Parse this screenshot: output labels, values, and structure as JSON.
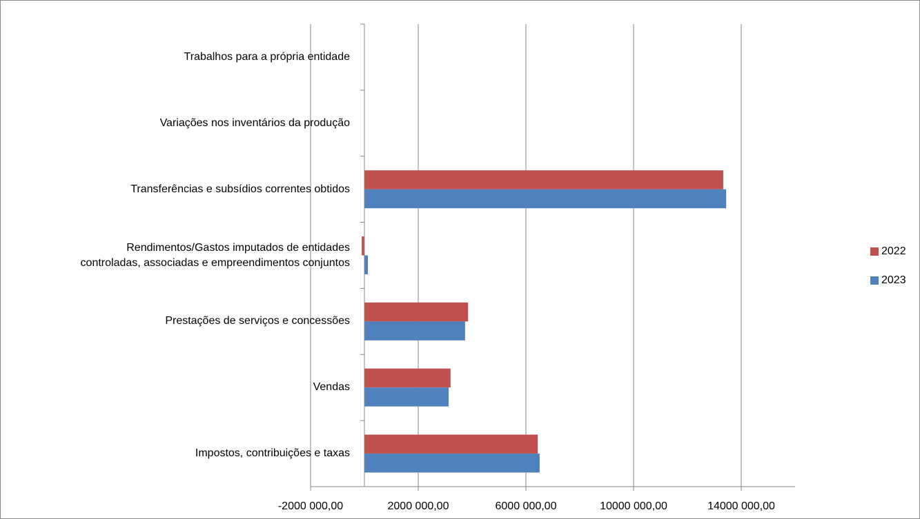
{
  "chart_data": {
    "type": "bar",
    "orientation": "horizontal",
    "categories": [
      "Trabalhos para a própria entidade",
      "Variações nos inventários da produção",
      "Transferências e subsídios correntes obtidos",
      "Rendimentos/Gastos imputados de entidades\ncontroladas, associadas e empreendimentos conjuntos",
      "Prestações de serviços e concessões",
      "Vendas",
      "Impostos, contribuições e taxas"
    ],
    "series": [
      {
        "name": "2022",
        "color": "#c0504d",
        "values": [
          0,
          0,
          13330000,
          -100000,
          3850000,
          3200000,
          6440000
        ]
      },
      {
        "name": "2023",
        "color": "#4f81bd",
        "values": [
          0,
          0,
          13440000,
          130000,
          3740000,
          3130000,
          6510000
        ]
      }
    ],
    "xlim": [
      -2000000,
      16000000
    ],
    "xticks": [
      {
        "value": -2000000,
        "label": "-2000 000,00"
      },
      {
        "value": 2000000,
        "label": "2000 000,00"
      },
      {
        "value": 6000000,
        "label": "6000 000,00"
      },
      {
        "value": 10000000,
        "label": "10000 000,00"
      },
      {
        "value": 14000000,
        "label": "14000 000,00"
      }
    ],
    "grid": true,
    "legend": "right"
  }
}
